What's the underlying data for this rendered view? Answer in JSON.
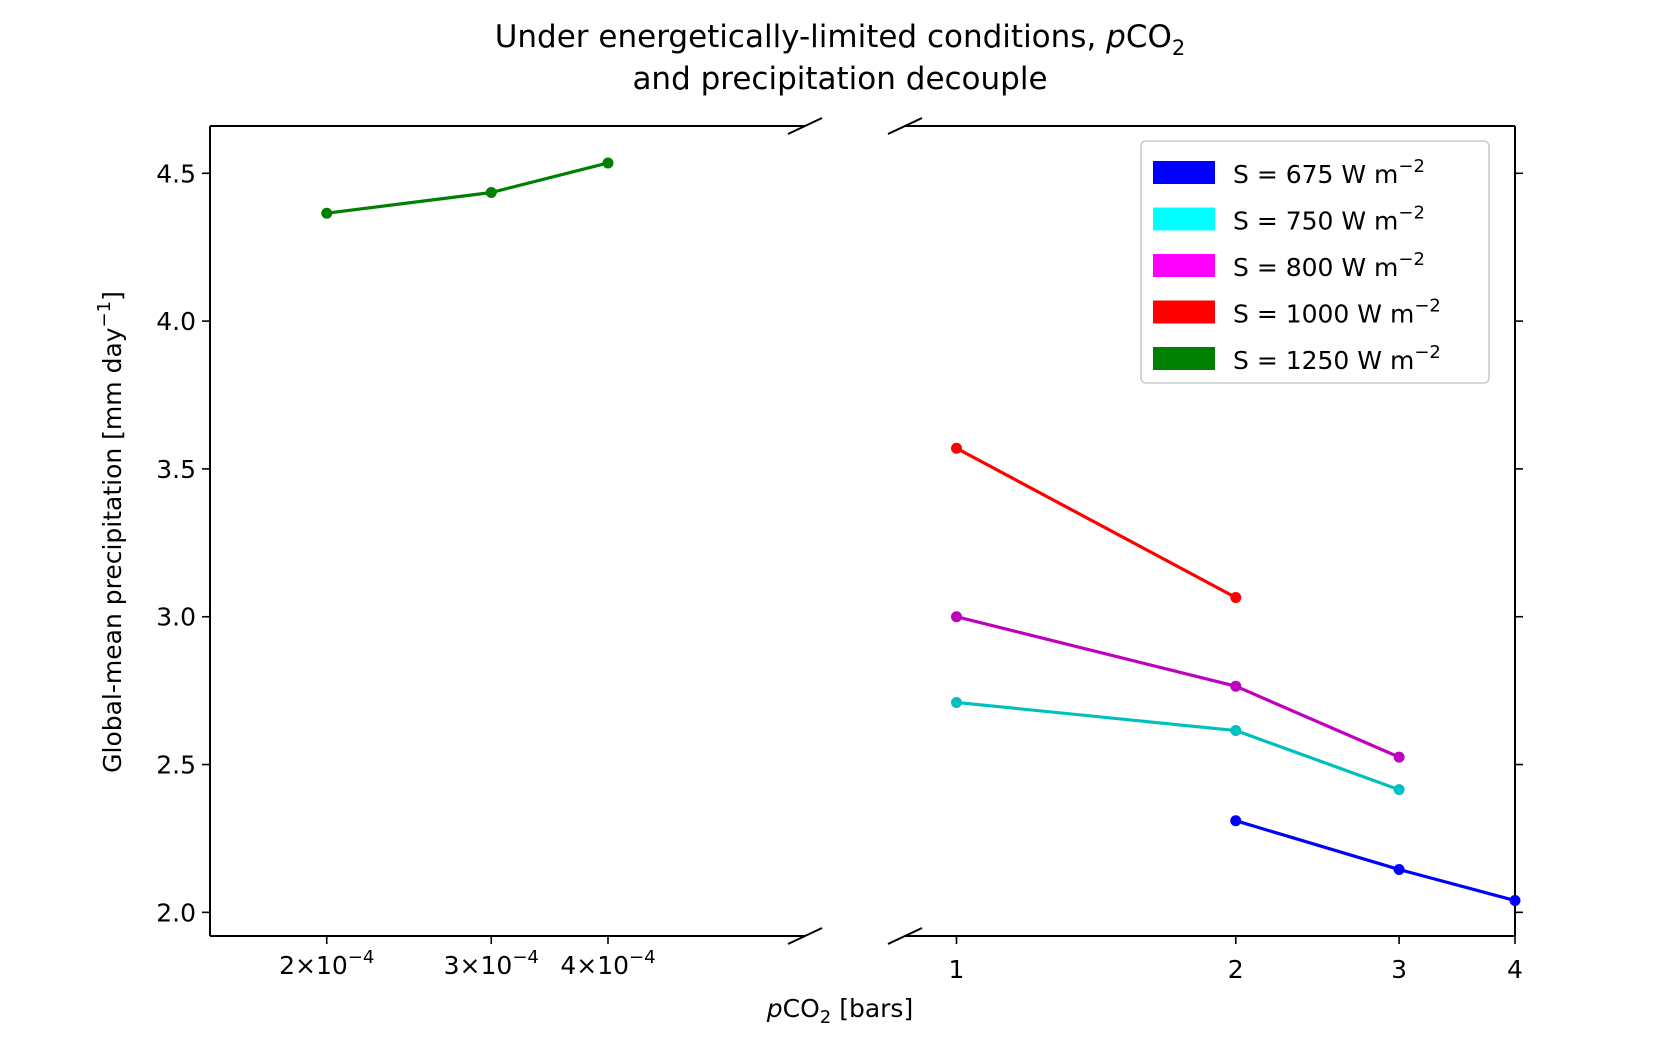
{
  "chart_data": {
    "type": "line",
    "title_line1_main": "Under energetically-limited conditions, ",
    "title_line1_italic": "p",
    "title_line1_co": "CO",
    "title_line1_sub": "2",
    "title_line2": "and precipitation decouple",
    "xlabel_italic": "p",
    "xlabel_co": "CO",
    "xlabel_sub": "2",
    "xlabel_rest": " [bars]",
    "ylabel_main": "Global-mean precipitation [mm day",
    "ylabel_sup": "−1",
    "ylabel_end": "]",
    "xscale": "log",
    "broken_x_axis": true,
    "left_panel": {
      "xlim": [
        0.00015,
        0.00065
      ],
      "ticks": [
        {
          "value": 0.0002,
          "coef": "2",
          "exp": "−4"
        },
        {
          "value": 0.0003,
          "coef": "3",
          "exp": "−4"
        },
        {
          "value": 0.0004,
          "coef": "4",
          "exp": "−4"
        }
      ]
    },
    "right_panel": {
      "xlim": [
        0.88,
        4.0
      ],
      "ticks": [
        {
          "value": 1,
          "label": "1"
        },
        {
          "value": 2,
          "label": "2"
        },
        {
          "value": 3,
          "label": "3"
        },
        {
          "value": 4,
          "label": "4"
        }
      ]
    },
    "ylim": [
      1.92,
      4.66
    ],
    "yticks": [
      {
        "value": 2.0,
        "label": "2.0"
      },
      {
        "value": 2.5,
        "label": "2.5"
      },
      {
        "value": 3.0,
        "label": "3.0"
      },
      {
        "value": 3.5,
        "label": "3.5"
      },
      {
        "value": 4.0,
        "label": "4.0"
      },
      {
        "value": 4.5,
        "label": "4.5"
      }
    ],
    "legend_position": "upper right",
    "series": [
      {
        "key": "s675",
        "label_main": "S = 675 W m",
        "label_sup": "−2",
        "color": "#0000ff",
        "points": [
          {
            "x": 2,
            "y": 2.31
          },
          {
            "x": 3,
            "y": 2.145
          },
          {
            "x": 4,
            "y": 2.04
          }
        ]
      },
      {
        "key": "s750",
        "label_main": "S = 750 W m",
        "label_sup": "−2",
        "color": "#00bfbf",
        "legend_color": "#00ffff",
        "points": [
          {
            "x": 1,
            "y": 2.71
          },
          {
            "x": 2,
            "y": 2.615
          },
          {
            "x": 3,
            "y": 2.415
          }
        ]
      },
      {
        "key": "s800",
        "label_main": "S = 800 W m",
        "label_sup": "−2",
        "color": "#bf00bf",
        "legend_color": "#ff00ff",
        "points": [
          {
            "x": 1,
            "y": 3.0
          },
          {
            "x": 2,
            "y": 2.765
          },
          {
            "x": 3,
            "y": 2.525
          }
        ]
      },
      {
        "key": "s1000",
        "label_main": "S = 1000 W m",
        "label_sup": "−2",
        "color": "#ff0000",
        "points": [
          {
            "x": 1,
            "y": 3.57
          },
          {
            "x": 2,
            "y": 3.065
          }
        ]
      },
      {
        "key": "s1250",
        "label_main": "S = 1250 W m",
        "label_sup": "−2",
        "color": "#008000",
        "points": [
          {
            "x": 0.0002,
            "y": 4.365
          },
          {
            "x": 0.0003,
            "y": 4.435
          },
          {
            "x": 0.0004,
            "y": 4.535
          }
        ]
      }
    ]
  }
}
